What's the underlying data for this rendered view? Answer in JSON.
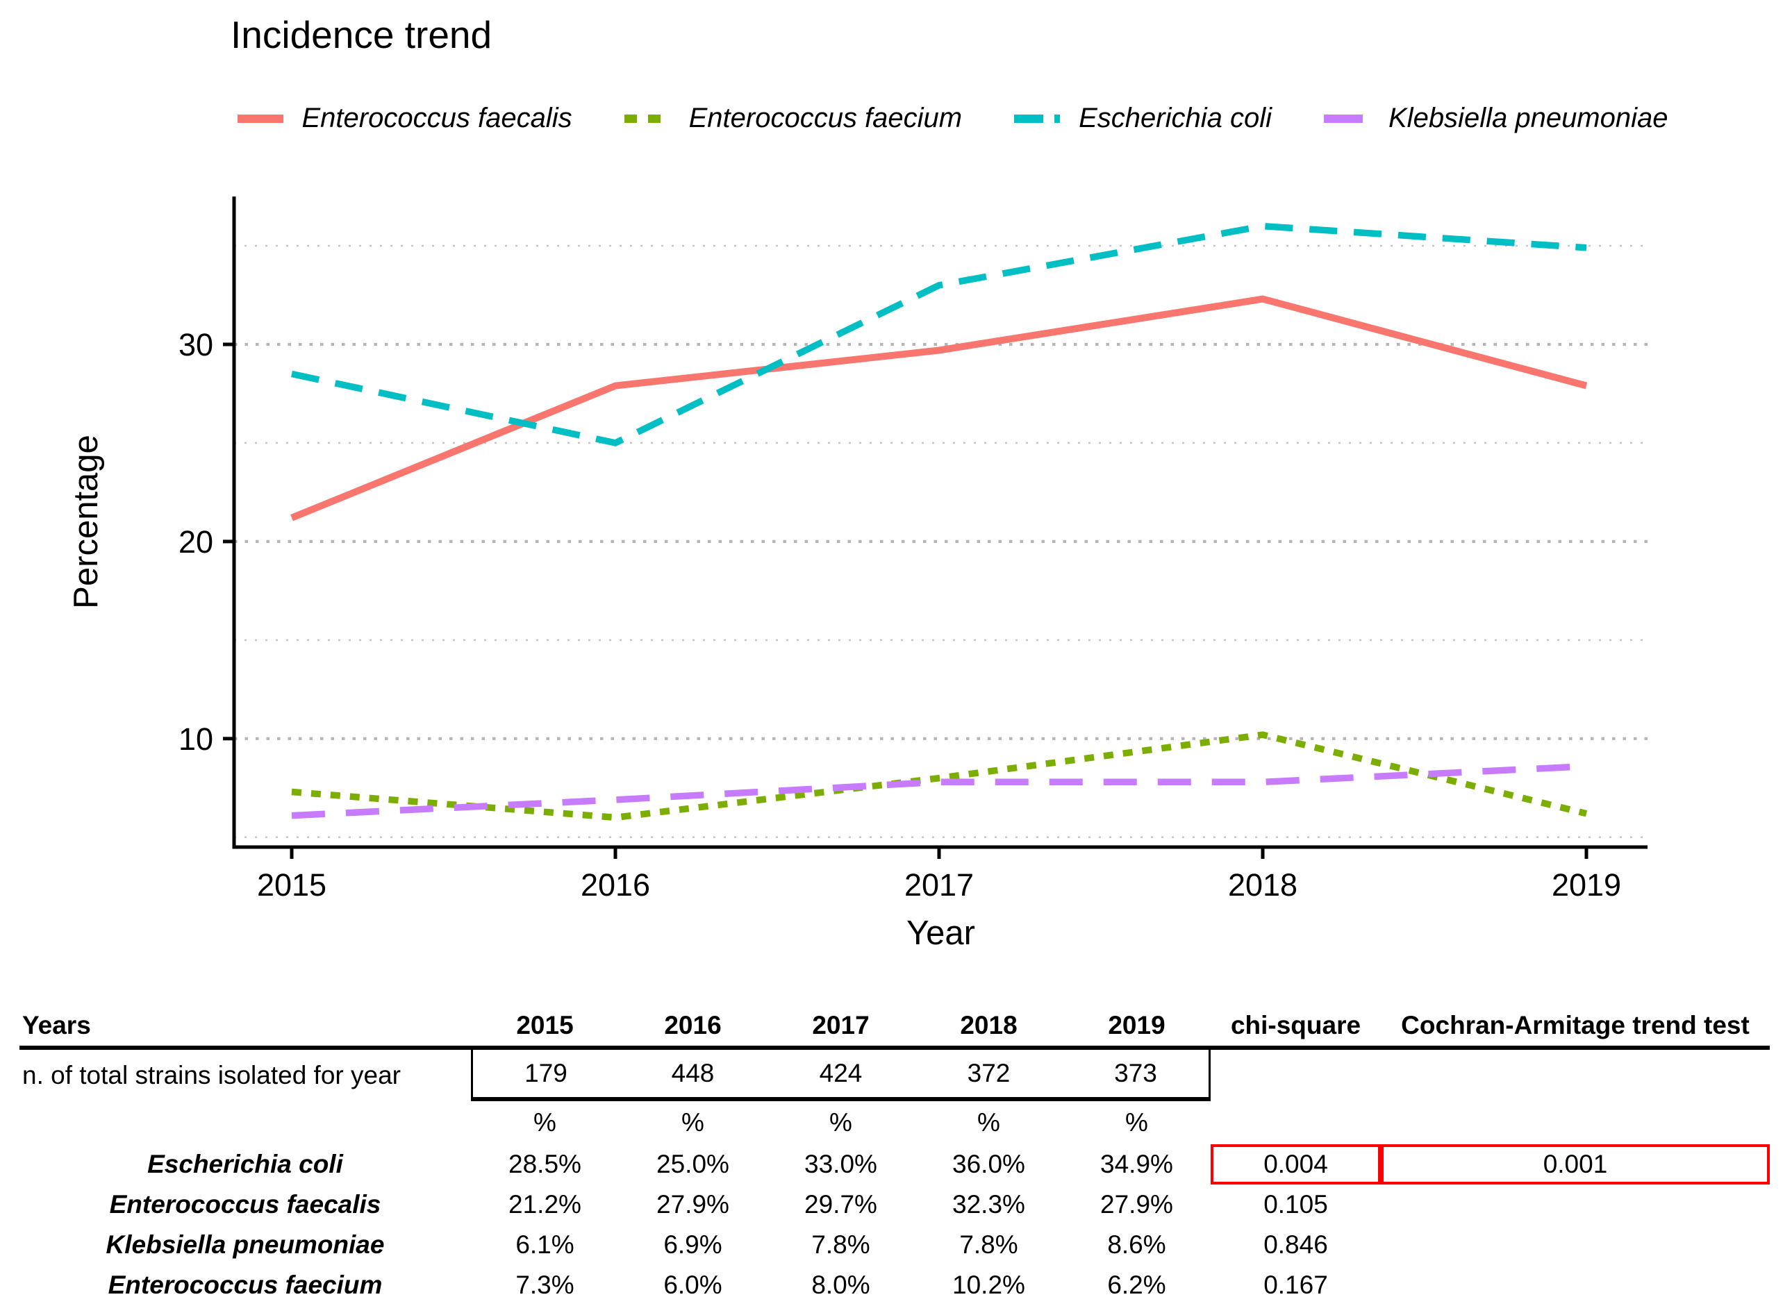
{
  "title": "Incidence trend",
  "colors": {
    "faecalis": "#F8766D",
    "faecium": "#7CAE00",
    "coli": "#00BFC4",
    "pneumoniae": "#C77CFF",
    "highlight_box": "#FD0000",
    "gridline_major": "#B5B5B5",
    "gridline_minor": "#C7C7C7",
    "axis": "#000000"
  },
  "chart_data": {
    "type": "line",
    "title": "Incidence trend",
    "x": [
      2015,
      2016,
      2017,
      2018,
      2019
    ],
    "xlabel": "Year",
    "ylabel": "Percentage",
    "yticks": [
      10,
      20,
      30
    ],
    "gridlines": [
      5,
      10,
      15,
      20,
      25,
      30,
      35
    ],
    "ylim": [
      4.5,
      37.5
    ],
    "grid": "dotted",
    "legend_position": "top",
    "series": [
      {
        "name": "Enterococcus faecalis",
        "color": "#F8766D",
        "dash": "solid",
        "values": [
          21.2,
          27.9,
          29.7,
          32.3,
          27.9
        ]
      },
      {
        "name": "Enterococcus faecium",
        "color": "#7CAE00",
        "dash": "dotted",
        "values": [
          7.3,
          6.0,
          8.0,
          10.2,
          6.2
        ]
      },
      {
        "name": "Escherichia coli",
        "color": "#00BFC4",
        "dash": "dashed",
        "values": [
          28.5,
          25.0,
          33.0,
          36.0,
          34.9
        ]
      },
      {
        "name": "Klebsiella pneumoniae",
        "color": "#C77CFF",
        "dash": "longdash",
        "values": [
          6.1,
          6.9,
          7.8,
          7.8,
          8.6
        ]
      }
    ]
  },
  "table": {
    "header": {
      "label": "Years",
      "years": [
        "2015",
        "2016",
        "2017",
        "2018",
        "2019"
      ],
      "chi": "chi-square",
      "ca": "Cochran-Armitage trend test"
    },
    "strains_row": {
      "label": "n. of total strains isolated for year",
      "values": [
        "179",
        "448",
        "424",
        "372",
        "373"
      ]
    },
    "percent_row": [
      "%",
      "%",
      "%",
      "%",
      "%"
    ],
    "rows": [
      {
        "label": "Escherichia coli",
        "values": [
          "28.5%",
          "25.0%",
          "33.0%",
          "36.0%",
          "34.9%"
        ],
        "chi": "0.004",
        "ca": "0.001",
        "highlight": true
      },
      {
        "label": "Enterococcus faecalis",
        "values": [
          "21.2%",
          "27.9%",
          "29.7%",
          "32.3%",
          "27.9%"
        ],
        "chi": "0.105",
        "ca": "",
        "highlight": false
      },
      {
        "label": "Klebsiella pneumoniae",
        "values": [
          "6.1%",
          "6.9%",
          "7.8%",
          "7.8%",
          "8.6%"
        ],
        "chi": "0.846",
        "ca": "",
        "highlight": false
      },
      {
        "label": "Enterococcus faecium",
        "values": [
          "7.3%",
          "6.0%",
          "8.0%",
          "10.2%",
          "6.2%"
        ],
        "chi": "0.167",
        "ca": "",
        "highlight": false
      }
    ]
  }
}
